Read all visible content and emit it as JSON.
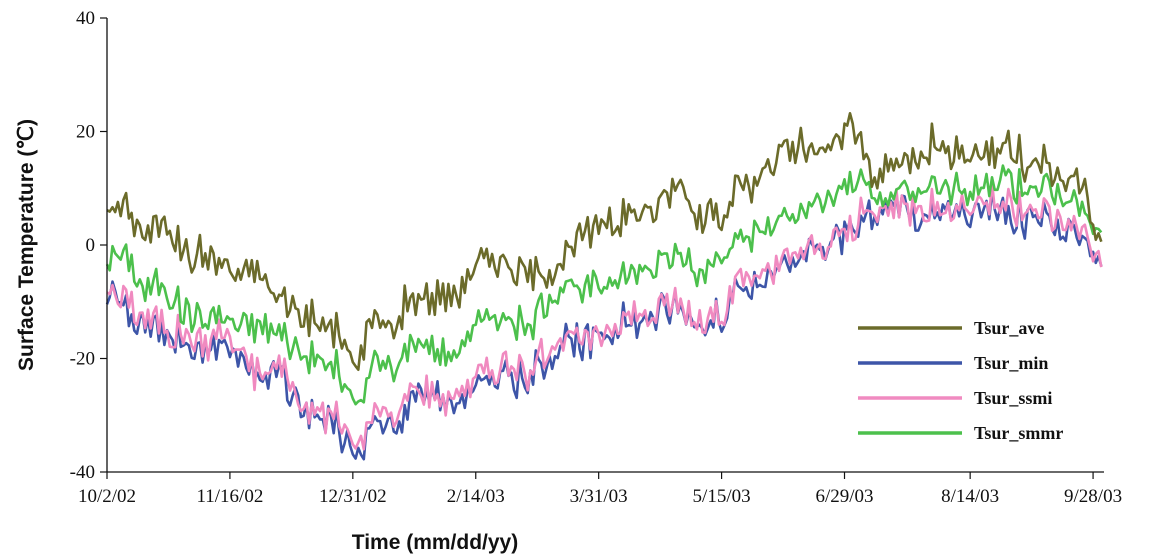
{
  "chart_data": {
    "type": "line",
    "title": "",
    "xlabel": "Time (mm/dd/yy)",
    "ylabel": "Surface Temperature (℃)",
    "ylim": [
      -40,
      40
    ],
    "xlim": [
      "2002-10-02",
      "2003-10-02"
    ],
    "yticks": [
      40,
      20,
      0,
      -20,
      -40
    ],
    "xtick_labels": [
      "10/2/02",
      "11/16/02",
      "12/31/02",
      "2/14/03",
      "3/31/03",
      "5/15/03",
      "6/29/03",
      "8/14/03",
      "9/28/03"
    ],
    "xtick_dates": [
      "2002-10-02",
      "2002-11-16",
      "2002-12-31",
      "2003-02-14",
      "2003-03-31",
      "2003-05-15",
      "2003-06-29",
      "2003-08-14",
      "2003-09-28"
    ],
    "grid": false,
    "legend_position": "bottom-right",
    "x": [
      "2002-10-02",
      "2002-10-09",
      "2002-10-16",
      "2002-10-23",
      "2002-10-30",
      "2002-11-06",
      "2002-11-13",
      "2002-11-20",
      "2002-11-27",
      "2002-12-04",
      "2002-12-11",
      "2002-12-18",
      "2002-12-25",
      "2003-01-01",
      "2003-01-08",
      "2003-01-15",
      "2003-01-22",
      "2003-01-29",
      "2003-02-05",
      "2003-02-12",
      "2003-02-19",
      "2003-02-26",
      "2003-03-05",
      "2003-03-12",
      "2003-03-19",
      "2003-03-26",
      "2003-04-02",
      "2003-04-09",
      "2003-04-16",
      "2003-04-23",
      "2003-04-30",
      "2003-05-07",
      "2003-05-14",
      "2003-05-21",
      "2003-05-28",
      "2003-06-04",
      "2003-06-11",
      "2003-06-18",
      "2003-06-25",
      "2003-07-02",
      "2003-07-09",
      "2003-07-16",
      "2003-07-23",
      "2003-07-30",
      "2003-08-06",
      "2003-08-13",
      "2003-08-20",
      "2003-08-27",
      "2003-09-03",
      "2003-09-10",
      "2003-09-17",
      "2003-09-24",
      "2003-10-01"
    ],
    "series": [
      {
        "name": "Tsur_ave",
        "color": "#6b6b2a",
        "values": [
          6,
          7,
          2,
          5,
          -1,
          -2,
          -3,
          -5,
          -6,
          -9,
          -12,
          -14,
          -15,
          -22,
          -12,
          -14,
          -8,
          -10,
          -8,
          -5,
          -2,
          -4,
          -6,
          -5,
          -2,
          2,
          4,
          5,
          6,
          8,
          11,
          5,
          6,
          9,
          12,
          15,
          17,
          16,
          18,
          22,
          12,
          14,
          16,
          18,
          17,
          15,
          16,
          18,
          14,
          15,
          13,
          11,
          0
        ]
      },
      {
        "name": "Tsur_min",
        "color": "#3d55a8",
        "values": [
          -8,
          -11,
          -14,
          -15,
          -17,
          -19,
          -16,
          -21,
          -24,
          -22,
          -28,
          -30,
          -32,
          -38,
          -31,
          -33,
          -25,
          -27,
          -28,
          -26,
          -23,
          -22,
          -25,
          -19,
          -17,
          -18,
          -16,
          -14,
          -13,
          -12,
          -11,
          -14,
          -13,
          -8,
          -7,
          -5,
          -3,
          -2,
          0,
          3,
          5,
          7,
          6,
          6,
          5,
          6,
          7,
          6,
          4,
          5,
          3,
          2,
          -3
        ]
      },
      {
        "name": "Tsur_ssmi",
        "color": "#f08ac0",
        "values": [
          -7,
          -10,
          -13,
          -14,
          -16,
          -18,
          -15,
          -20,
          -23,
          -21,
          -27,
          -29,
          -31,
          -36,
          -29,
          -31,
          -24,
          -26,
          -27,
          -24,
          -22,
          -21,
          -24,
          -18,
          -16,
          -17,
          -15,
          -13,
          -12,
          -11,
          -10,
          -13,
          -12,
          -7,
          -6,
          -4,
          -2,
          -1,
          1,
          4,
          5,
          7,
          7,
          7,
          6,
          7,
          8,
          7,
          5,
          6,
          4,
          3,
          -2
        ]
      },
      {
        "name": "Tsur_smmr",
        "color": "#4cc04c",
        "values": [
          -3,
          -2,
          -8,
          -7,
          -12,
          -13,
          -12,
          -15,
          -14,
          -16,
          -18,
          -20,
          -22,
          -28,
          -20,
          -22,
          -16,
          -18,
          -20,
          -15,
          -12,
          -13,
          -15,
          -10,
          -7,
          -8,
          -6,
          -5,
          -4,
          -3,
          -2,
          -4,
          -2,
          1,
          2,
          4,
          5,
          7,
          8,
          12,
          8,
          9,
          10,
          11,
          10,
          10,
          11,
          12,
          9,
          10,
          8,
          7,
          2
        ]
      }
    ]
  }
}
